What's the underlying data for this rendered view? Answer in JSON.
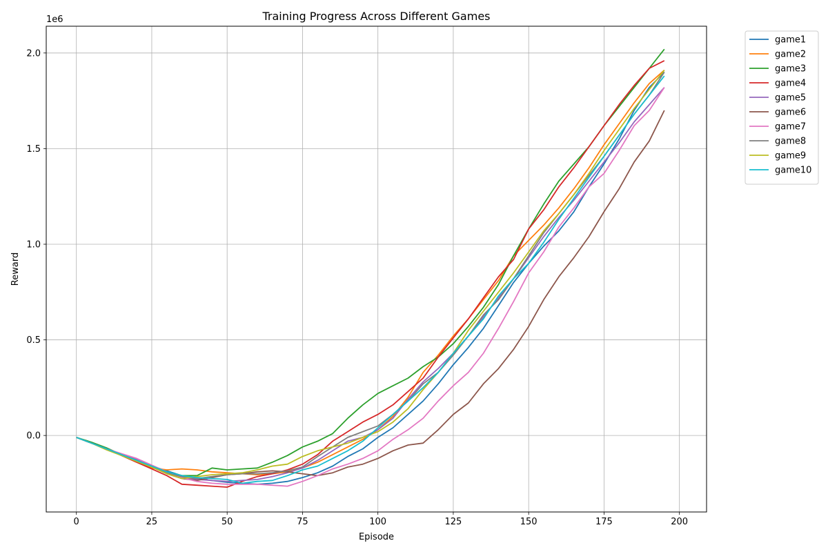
{
  "chart_data": {
    "type": "line",
    "title": "Training Progress Across Different Games",
    "xlabel": "Episode",
    "ylabel": "Reward",
    "y_offset_label": "1e6",
    "xlim": [
      -10,
      209
    ],
    "ylim": [
      -400000,
      2140000
    ],
    "xticks": [
      0,
      25,
      50,
      75,
      100,
      125,
      150,
      175,
      200
    ],
    "yticks": [
      0,
      500000,
      1000000,
      1500000,
      2000000
    ],
    "ytick_labels": [
      "0.0",
      "0.5",
      "1.0",
      "1.5",
      "2.0"
    ],
    "grid": true,
    "legend_position": "outside-top-right",
    "x_start": 0,
    "x_step": 5,
    "series": [
      {
        "name": "game1",
        "color": "#1f77b4",
        "values": [
          -10000,
          -40000,
          -70000,
          -100000,
          -130000,
          -160000,
          -185000,
          -210000,
          -225000,
          -235000,
          -245000,
          -250000,
          -255000,
          -250000,
          -240000,
          -220000,
          -195000,
          -160000,
          -110000,
          -70000,
          -10000,
          40000,
          110000,
          180000,
          270000,
          370000,
          460000,
          560000,
          680000,
          800000,
          900000,
          990000,
          1070000,
          1170000,
          1300000,
          1420000,
          1550000,
          1700000,
          1820000,
          1900000
        ]
      },
      {
        "name": "game2",
        "color": "#ff7f0e",
        "values": [
          -10000,
          -40000,
          -70000,
          -105000,
          -140000,
          -170000,
          -180000,
          -175000,
          -180000,
          -190000,
          -195000,
          -200000,
          -205000,
          -200000,
          -190000,
          -170000,
          -140000,
          -100000,
          -60000,
          -20000,
          30000,
          100000,
          200000,
          330000,
          420000,
          520000,
          610000,
          710000,
          810000,
          940000,
          1020000,
          1100000,
          1190000,
          1290000,
          1400000,
          1520000,
          1630000,
          1740000,
          1840000,
          1910000
        ]
      },
      {
        "name": "game3",
        "color": "#2ca02c",
        "values": [
          -10000,
          -35000,
          -65000,
          -100000,
          -130000,
          -160000,
          -190000,
          -210000,
          -210000,
          -170000,
          -180000,
          -175000,
          -170000,
          -140000,
          -105000,
          -60000,
          -30000,
          10000,
          90000,
          160000,
          220000,
          260000,
          300000,
          360000,
          410000,
          480000,
          570000,
          670000,
          790000,
          940000,
          1080000,
          1210000,
          1330000,
          1420000,
          1510000,
          1620000,
          1720000,
          1820000,
          1920000,
          2020000
        ]
      },
      {
        "name": "game4",
        "color": "#d62728",
        "values": [
          -10000,
          -40000,
          -70000,
          -105000,
          -140000,
          -175000,
          -210000,
          -255000,
          -260000,
          -265000,
          -270000,
          -240000,
          -215000,
          -200000,
          -180000,
          -150000,
          -100000,
          -30000,
          20000,
          70000,
          110000,
          160000,
          230000,
          300000,
          410000,
          510000,
          610000,
          720000,
          830000,
          920000,
          1080000,
          1180000,
          1300000,
          1400000,
          1510000,
          1620000,
          1730000,
          1830000,
          1920000,
          1960000
        ]
      },
      {
        "name": "game5",
        "color": "#9467bd",
        "values": [
          -10000,
          -40000,
          -70000,
          -100000,
          -125000,
          -160000,
          -190000,
          -220000,
          -230000,
          -235000,
          -240000,
          -235000,
          -230000,
          -215000,
          -195000,
          -170000,
          -130000,
          -80000,
          -30000,
          -10000,
          30000,
          90000,
          190000,
          280000,
          350000,
          430000,
          520000,
          620000,
          720000,
          820000,
          930000,
          1040000,
          1140000,
          1230000,
          1330000,
          1430000,
          1530000,
          1640000,
          1730000,
          1820000
        ]
      },
      {
        "name": "game6",
        "color": "#8c564b",
        "values": [
          -10000,
          -40000,
          -70000,
          -100000,
          -130000,
          -165000,
          -200000,
          -225000,
          -235000,
          -220000,
          -205000,
          -200000,
          -190000,
          -185000,
          -190000,
          -200000,
          -210000,
          -195000,
          -165000,
          -150000,
          -120000,
          -80000,
          -50000,
          -40000,
          30000,
          110000,
          170000,
          270000,
          350000,
          450000,
          570000,
          710000,
          830000,
          930000,
          1040000,
          1170000,
          1290000,
          1430000,
          1540000,
          1700000
        ]
      },
      {
        "name": "game7",
        "color": "#e377c2",
        "values": [
          -10000,
          -40000,
          -70000,
          -95000,
          -120000,
          -155000,
          -190000,
          -220000,
          -240000,
          -250000,
          -255000,
          -255000,
          -255000,
          -260000,
          -265000,
          -240000,
          -210000,
          -175000,
          -150000,
          -120000,
          -80000,
          -20000,
          30000,
          90000,
          180000,
          260000,
          330000,
          430000,
          560000,
          700000,
          850000,
          960000,
          1090000,
          1190000,
          1300000,
          1370000,
          1490000,
          1620000,
          1700000,
          1820000
        ]
      },
      {
        "name": "game8",
        "color": "#7f7f7f",
        "values": [
          -10000,
          -40000,
          -70000,
          -100000,
          -135000,
          -165000,
          -195000,
          -215000,
          -225000,
          -215000,
          -205000,
          -200000,
          -200000,
          -195000,
          -185000,
          -165000,
          -110000,
          -60000,
          -10000,
          20000,
          50000,
          110000,
          180000,
          270000,
          330000,
          420000,
          520000,
          630000,
          710000,
          820000,
          940000,
          1060000,
          1160000,
          1260000,
          1360000,
          1460000,
          1570000,
          1680000,
          1780000,
          1900000
        ]
      },
      {
        "name": "game9",
        "color": "#bcbd22",
        "values": [
          -10000,
          -40000,
          -75000,
          -105000,
          -135000,
          -165000,
          -200000,
          -225000,
          -215000,
          -205000,
          -200000,
          -195000,
          -180000,
          -160000,
          -150000,
          -110000,
          -80000,
          -60000,
          -40000,
          -10000,
          20000,
          70000,
          140000,
          240000,
          330000,
          430000,
          550000,
          650000,
          750000,
          850000,
          960000,
          1070000,
          1160000,
          1260000,
          1370000,
          1490000,
          1600000,
          1710000,
          1810000,
          1910000
        ]
      },
      {
        "name": "game10",
        "color": "#17becf",
        "values": [
          -10000,
          -40000,
          -70000,
          -100000,
          -130000,
          -160000,
          -190000,
          -210000,
          -220000,
          -225000,
          -230000,
          -250000,
          -240000,
          -235000,
          -210000,
          -180000,
          -160000,
          -120000,
          -80000,
          -30000,
          40000,
          110000,
          180000,
          250000,
          330000,
          430000,
          520000,
          610000,
          730000,
          820000,
          900000,
          1010000,
          1130000,
          1240000,
          1350000,
          1460000,
          1570000,
          1680000,
          1780000,
          1880000
        ]
      }
    ]
  }
}
